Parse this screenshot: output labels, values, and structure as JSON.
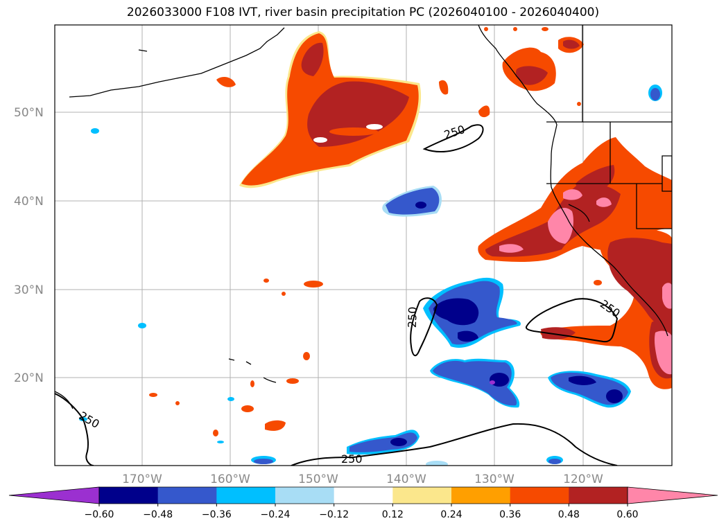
{
  "title": "2026033000 F108 IVT, river basin precipitation PC (2026040100 - 2026040400)",
  "latitude_labels": [
    "50°N",
    "40°N",
    "30°N",
    "20°N"
  ],
  "longitude_labels": [
    "170°W",
    "160°W",
    "150°W",
    "140°W",
    "130°W",
    "120°W"
  ],
  "contour_level": "250",
  "colorbar": {
    "ticks": [
      "−0.60",
      "−0.48",
      "−0.36",
      "−0.24",
      "−0.12",
      "0.12",
      "0.24",
      "0.36",
      "0.48",
      "0.60"
    ],
    "colors": [
      "#9b30d0",
      "#00008b",
      "#3558cc",
      "#00bfff",
      "#a8ddf5",
      "#ffffff",
      "#fbe78c",
      "#ff9f00",
      "#f64a00",
      "#b22222",
      "#ff86a9"
    ]
  },
  "fill_colors": {
    "neg_light": "#a8ddf5",
    "neg_cyan": "#00bfff",
    "neg_blue": "#3558cc",
    "neg_dark": "#00008b",
    "neg_purple": "#9b30d0",
    "pos_yellow": "#fbe78c",
    "pos_orange": "#ff9f00",
    "pos_red": "#f64a00",
    "pos_dark": "#b22222",
    "pos_pink": "#ff86a9"
  }
}
